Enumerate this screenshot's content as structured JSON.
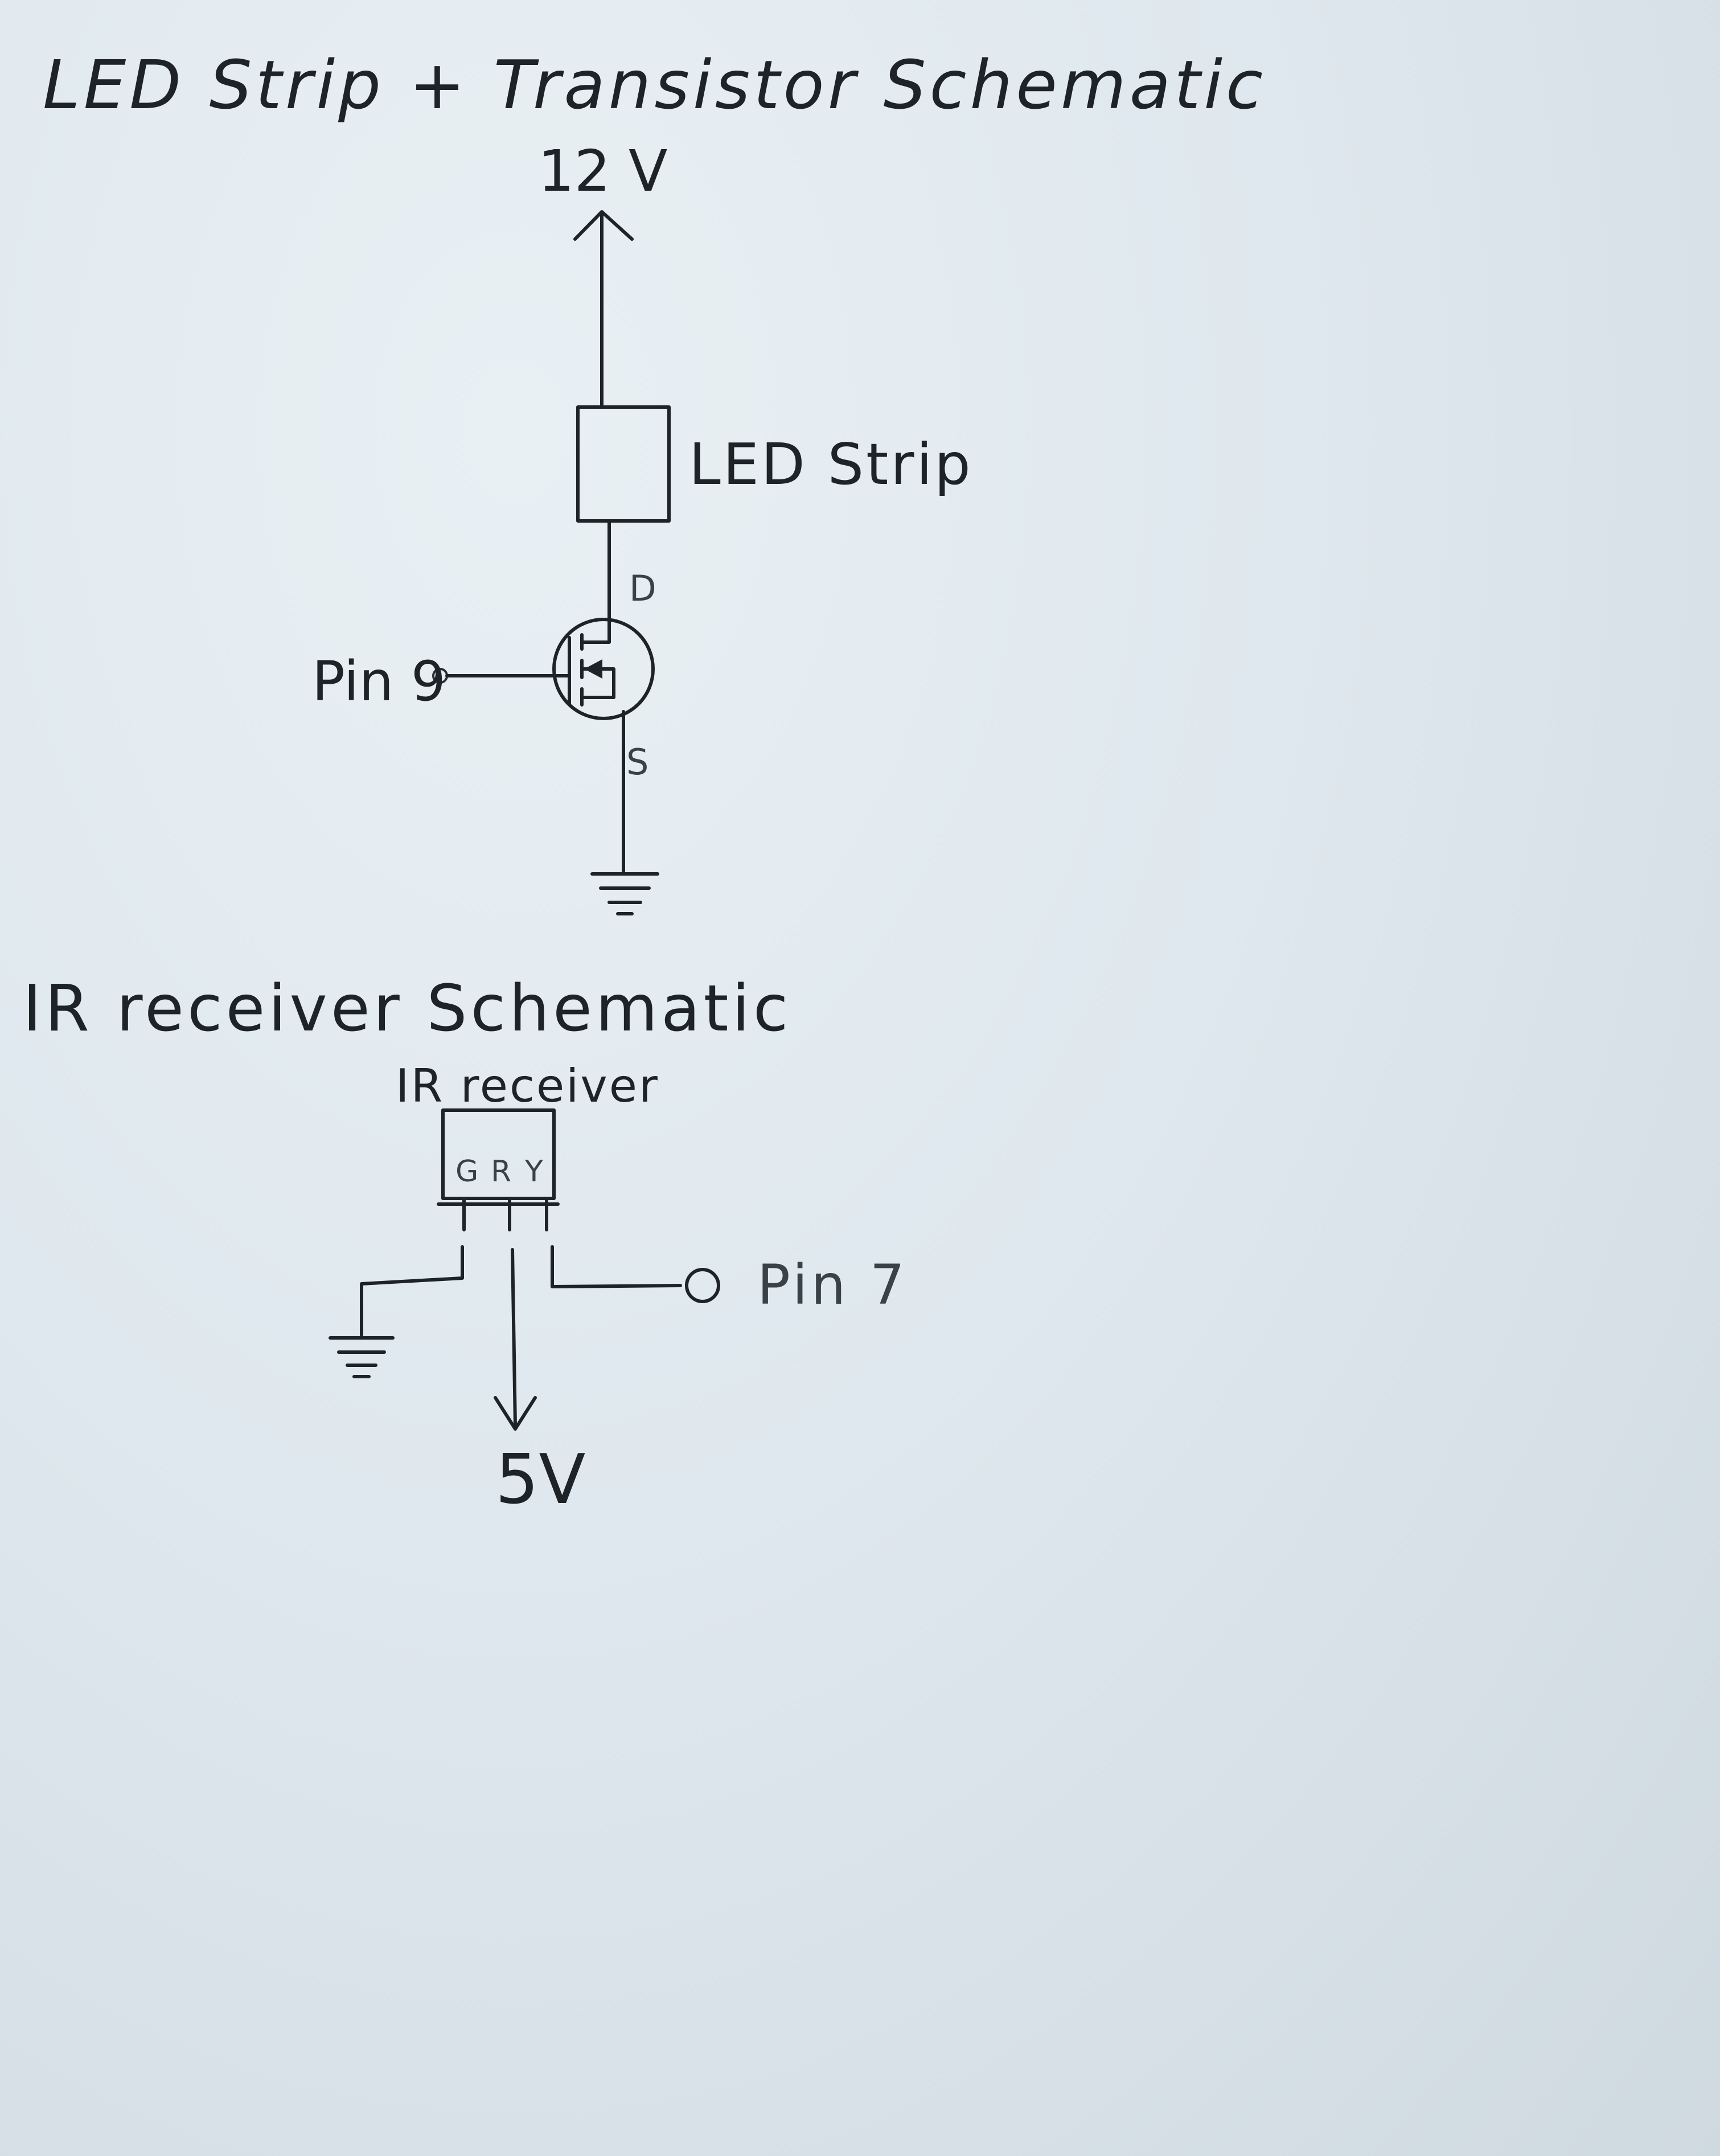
{
  "colors": {
    "paper": "#dde6ec",
    "ink": "#1e2328"
  },
  "led_section": {
    "title": "LED Strip + Transistor Schematic",
    "supply_label": "12 V",
    "load_label": "LED Strip",
    "drain_label": "D",
    "source_label": "S",
    "gate_label": "Pin 9"
  },
  "ir_section": {
    "title": "IR receiver Schematic",
    "component_label": "IR receiver",
    "pin_labels": [
      "G",
      "R",
      "Y"
    ],
    "output_label": "Pin 7",
    "supply_label": "5V"
  }
}
